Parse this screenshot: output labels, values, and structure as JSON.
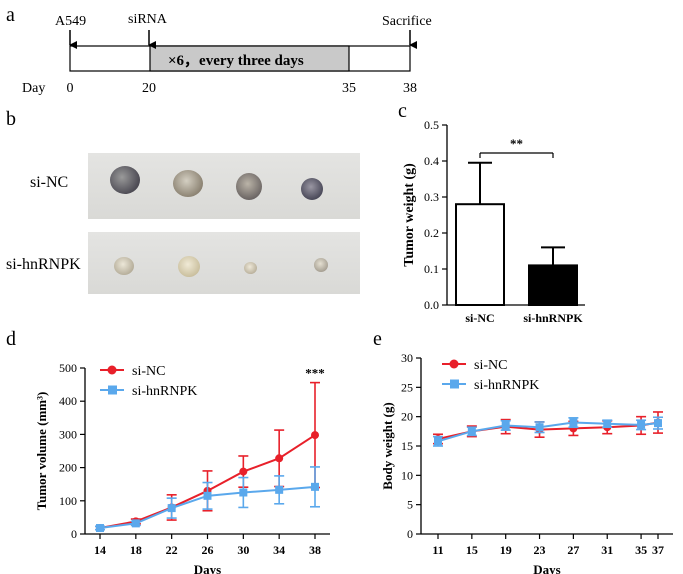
{
  "panels": {
    "a": "a",
    "b": "b",
    "c": "c",
    "d": "d",
    "e": "e"
  },
  "timeline": {
    "day_label": "Day",
    "events": [
      {
        "label": "A549",
        "day": "0"
      },
      {
        "label": "siRNA",
        "day": "20"
      },
      {
        "label": "Sacrifice",
        "day": "38"
      }
    ],
    "extra_day": "35",
    "treatment_text": "×6，every three days"
  },
  "photo": {
    "row_labels": [
      "si-NC",
      "si-hnRNPK"
    ]
  },
  "chart_data": [
    {
      "id": "c",
      "type": "bar",
      "categories": [
        "si-NC",
        "si-hnRNPK"
      ],
      "values": [
        0.28,
        0.11
      ],
      "errors": [
        0.115,
        0.05
      ],
      "fills": [
        "#ffffff",
        "#000000"
      ],
      "ylabel": "Tumor weight (g)",
      "ylim": [
        0,
        0.5
      ],
      "yticks": [
        "0.0",
        "0.1",
        "0.2",
        "0.3",
        "0.4",
        "0.5"
      ],
      "significance": "**"
    },
    {
      "id": "d",
      "type": "line",
      "x": [
        14,
        18,
        22,
        26,
        30,
        34,
        38
      ],
      "xticks": [
        "14",
        "18",
        "22",
        "26",
        "30",
        "34",
        "38"
      ],
      "xlabel": "Days",
      "ylabel": "Tumor volume (mm³)",
      "ylim": [
        0,
        500
      ],
      "yticks": [
        "0",
        "100",
        "200",
        "300",
        "400",
        "500"
      ],
      "annotation": "***",
      "series": [
        {
          "name": "si-NC",
          "color": "#e8202a",
          "marker": "circle",
          "values": [
            18,
            38,
            80,
            130,
            188,
            228,
            298
          ],
          "errors": [
            5,
            7,
            38,
            60,
            47,
            85,
            158
          ]
        },
        {
          "name": "si-hnRNPK",
          "color": "#5aa8ec",
          "marker": "square",
          "values": [
            18,
            32,
            78,
            115,
            125,
            133,
            142
          ],
          "errors": [
            5,
            6,
            30,
            40,
            45,
            42,
            60
          ]
        }
      ]
    },
    {
      "id": "e",
      "type": "line",
      "x": [
        11,
        15,
        19,
        23,
        27,
        31,
        35,
        37
      ],
      "xticks": [
        "11",
        "15",
        "19",
        "23",
        "27",
        "31",
        "35",
        "37"
      ],
      "xlabel": "Days",
      "ylabel": "Body weight (g)",
      "ylim": [
        0,
        30
      ],
      "yticks": [
        "0",
        "5",
        "10",
        "15",
        "20",
        "25",
        "30"
      ],
      "series": [
        {
          "name": "si-NC",
          "color": "#e8202a",
          "marker": "circle",
          "values": [
            16.2,
            17.5,
            18.3,
            17.8,
            18.0,
            18.2,
            18.5,
            19.0
          ],
          "errors": [
            0.8,
            0.9,
            1.2,
            1.3,
            1.2,
            1.1,
            1.5,
            1.8
          ]
        },
        {
          "name": "si-hnRNPK",
          "color": "#5aa8ec",
          "marker": "square",
          "values": [
            15.8,
            17.5,
            18.5,
            18.2,
            19.0,
            18.8,
            18.6,
            18.9
          ],
          "errors": [
            0.8,
            0.7,
            0.8,
            0.9,
            0.8,
            0.6,
            0.8,
            1.0
          ]
        }
      ]
    }
  ]
}
